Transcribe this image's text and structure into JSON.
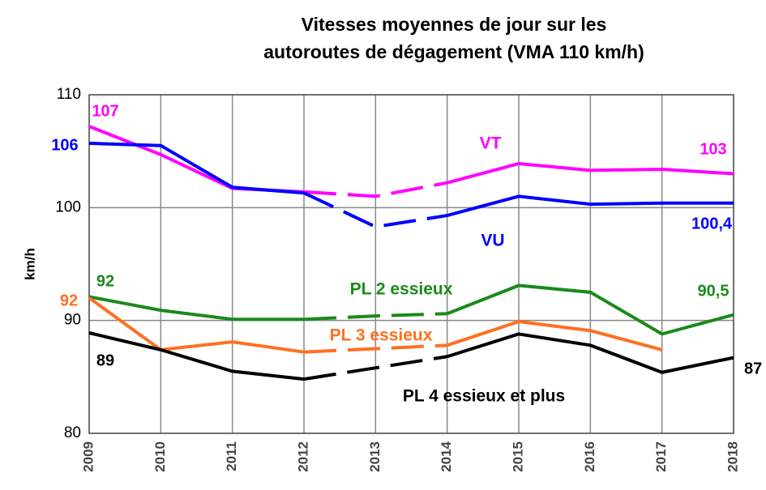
{
  "chart_data": {
    "type": "line",
    "title": [
      "Vitesses moyennes de jour sur les",
      "autoroutes de dégagement (VMA 110 km/h)"
    ],
    "y_label": "km/h",
    "categories": [
      "2009",
      "2010",
      "2011",
      "2012",
      "2013",
      "2014",
      "2015",
      "2016",
      "2017",
      "2018"
    ],
    "ylim": [
      80,
      110
    ],
    "yticks": [
      80,
      90,
      100,
      110
    ],
    "grid": true,
    "dashed_range": [
      3,
      5
    ],
    "series": [
      {
        "name": "VT",
        "color": "#ff00ff",
        "values": [
          107.2,
          104.7,
          101.7,
          101.4,
          101.0,
          102.2,
          103.9,
          103.3,
          103.4,
          103.0
        ],
        "value_labels": [
          "107",
          null,
          null,
          null,
          null,
          null,
          null,
          null,
          null,
          "103"
        ]
      },
      {
        "name": "VU",
        "color": "#0000ff",
        "values": [
          105.7,
          105.5,
          101.8,
          101.3,
          98.3,
          99.3,
          101.0,
          100.3,
          100.4,
          100.4
        ],
        "value_labels": [
          "106",
          null,
          null,
          null,
          null,
          null,
          null,
          null,
          null,
          "100,4"
        ]
      },
      {
        "name": "PL 2 essieux",
        "color": "#1a8a1a",
        "values": [
          92.1,
          90.9,
          90.1,
          90.1,
          90.4,
          90.6,
          93.1,
          92.5,
          88.8,
          90.5
        ],
        "value_labels": [
          "92",
          null,
          null,
          null,
          null,
          null,
          null,
          null,
          null,
          "90,5"
        ]
      },
      {
        "name": "PL 3 essieux",
        "color": "#ff7020",
        "values": [
          92.0,
          87.4,
          88.1,
          87.2,
          87.5,
          87.8,
          89.9,
          89.1,
          87.4,
          null
        ],
        "value_labels": [
          "92",
          null,
          null,
          null,
          null,
          null,
          null,
          null,
          null,
          null
        ]
      },
      {
        "name": "PL 4 essieux et plus",
        "color": "#000000",
        "values": [
          88.9,
          87.4,
          85.5,
          84.8,
          85.8,
          86.8,
          88.8,
          87.8,
          85.4,
          86.7
        ],
        "value_labels": [
          "89",
          null,
          null,
          null,
          null,
          null,
          null,
          null,
          null,
          "87"
        ]
      }
    ]
  }
}
